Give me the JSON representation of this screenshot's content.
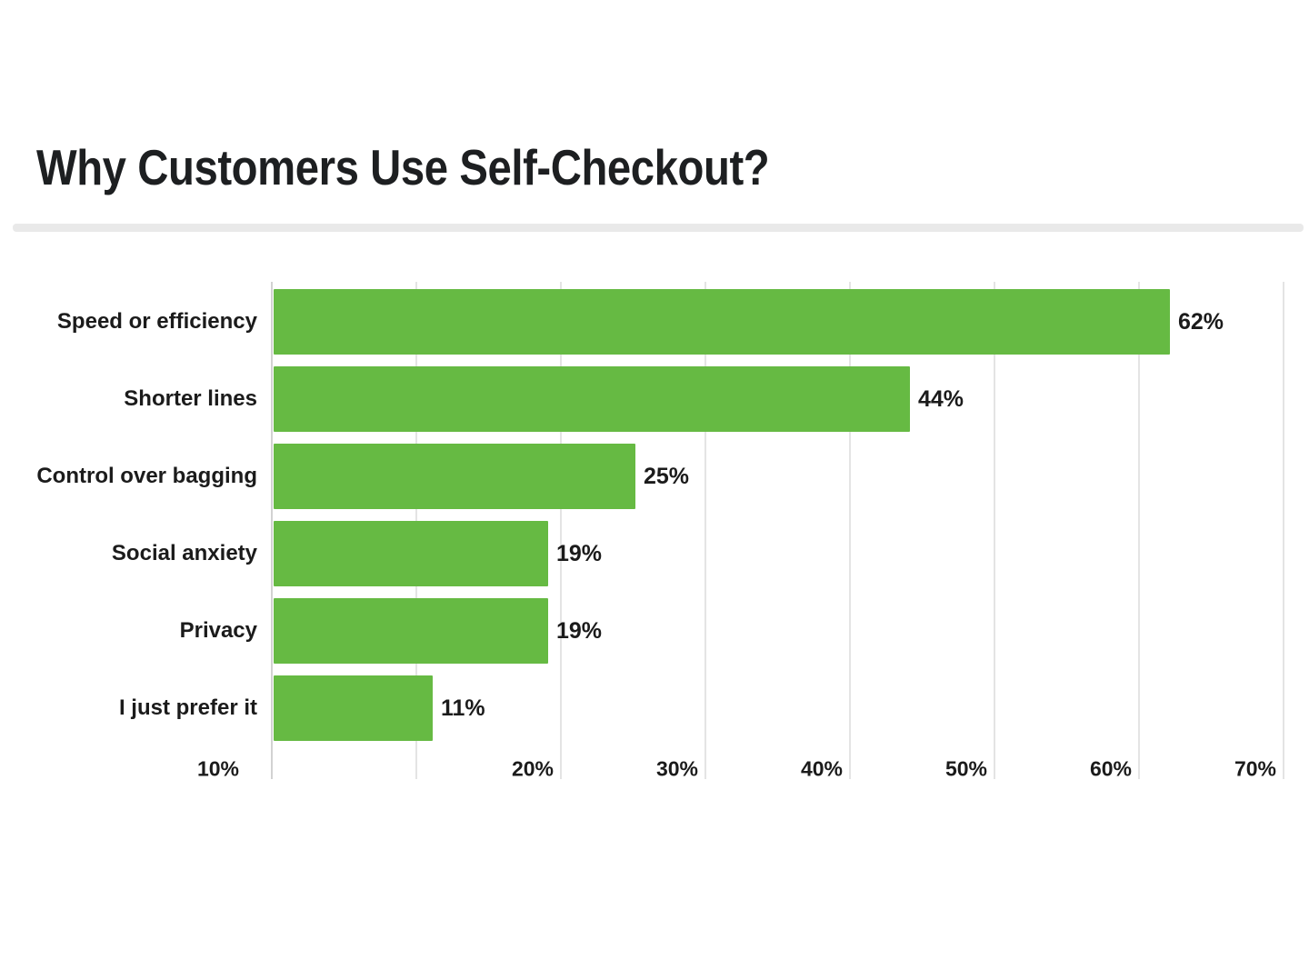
{
  "page": {
    "background_color": "#ffffff"
  },
  "header": {
    "title": "Why Customers Use Self-Checkout?"
  },
  "chart_data": {
    "type": "bar",
    "orientation": "horizontal",
    "title": "Why Customers Use Self-Checkout?",
    "categories": [
      "Speed or efficiency",
      "Shorter lines",
      "Control over bagging",
      "Social anxiety",
      "Privacy",
      "I just prefer it"
    ],
    "values": [
      62,
      44,
      25,
      19,
      19,
      11
    ],
    "value_labels": [
      "62%",
      "44%",
      "25%",
      "19%",
      "19%",
      "11%"
    ],
    "unit": "%",
    "xlim": [
      0,
      70
    ],
    "x_ticks": [
      "10%",
      "20%",
      "30%",
      "40%",
      "50%",
      "60%",
      "70%"
    ],
    "x_tick_values": [
      10,
      20,
      30,
      40,
      50,
      60,
      70
    ],
    "grid": true,
    "legend": false,
    "bar_color": "#66ba43",
    "gridline_color": "#e4e4e4",
    "axis_line_color": "#d2d2d2",
    "text_color": "#1b1b1b",
    "divider_color": "#e9e9e9"
  }
}
